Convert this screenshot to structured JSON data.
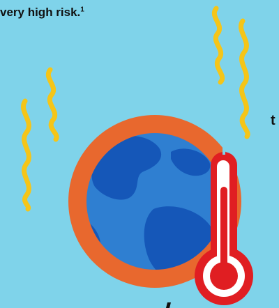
{
  "headline": {
    "text": "very high risk.",
    "footnote": "1"
  },
  "cut_letter": "t",
  "colors": {
    "background": "#7fd3ea",
    "heat_wave": "#f5c518",
    "earth_ring": "#e8682e",
    "ocean": "#2f7fd1",
    "land": "#1557b8",
    "thermometer_red": "#e01e22",
    "thermometer_glass": "#ffffff"
  },
  "icons": [
    "heat-wave-icon",
    "earth-globe-icon",
    "thermometer-icon"
  ]
}
